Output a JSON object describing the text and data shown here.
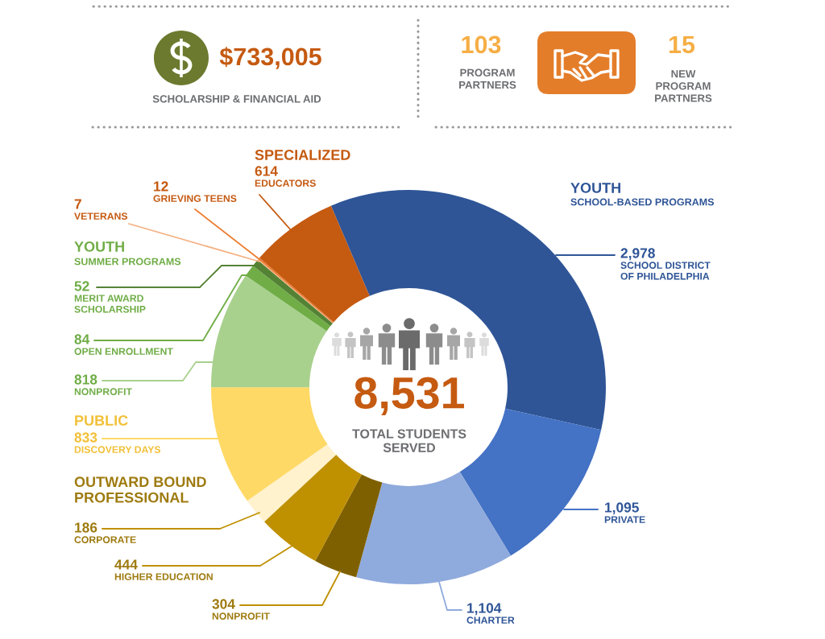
{
  "chart_data": [
    {
      "type": "other",
      "annotations": [
        "$733,005",
        "SCHOLARSHIP & FINANCIAL AID",
        "103",
        "PROGRAM\nPARTNERS",
        "15",
        "NEW\nPROGRAM\nPARTNERS"
      ]
    },
    {
      "type": "donut",
      "categories": [
        "SCHOOL DISTRICT\nOF PHILADELPHIA",
        "PRIVATE",
        "CHARTER",
        "NONPROFIT",
        "HIGHER EDUCATION",
        "CORPORATE",
        "DISCOVERY DAYS",
        "NONPROFIT",
        "OPEN ENROLLMENT",
        "MERIT AWARD\nSCHOLARSHIP",
        "VETERANS",
        "GRIEVING TEENS",
        "EDUCATORS"
      ],
      "values": [
        2978,
        1095,
        1104,
        304,
        444,
        186,
        833,
        818,
        84,
        52,
        7,
        12,
        614
      ],
      "value_labels": [
        "2,978",
        "1,095",
        "1,104",
        "304",
        "444",
        "186",
        "833",
        "818",
        "84",
        "52",
        "7",
        "12",
        "614"
      ],
      "colors": [
        "#2f5597",
        "#4472c4",
        "#8faadc",
        "#7f6000",
        "#bf9000",
        "#fff2cc",
        "#ffd966",
        "#a9d18e",
        "#70ad47",
        "#548235",
        "#f4b183",
        "#ed7d31",
        "#c55a11"
      ],
      "annotations": [
        "YOUTH",
        "SCHOOL-BASED PROGRAMS",
        "SPECIALIZED",
        "YOUTH",
        "SUMMER PROGRAMS",
        "PUBLIC",
        "OUTWARD BOUND\nPROFESSIONAL",
        "8,531",
        "TOTAL STUDENTS\nSERVED"
      ]
    }
  ]
}
